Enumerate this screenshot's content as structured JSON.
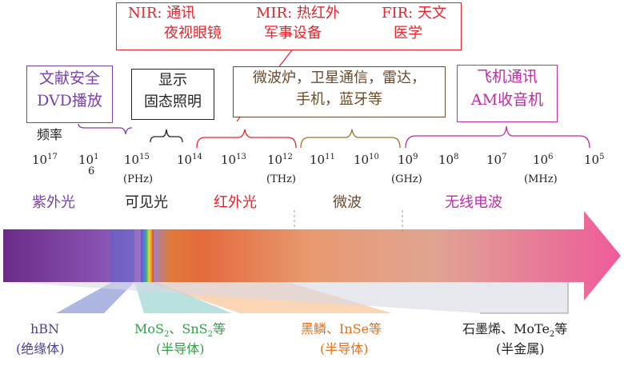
{
  "nir_box": {
    "nir_title": "NIR: 通讯",
    "nir_sub": "夜视眼镜",
    "mir_title": "MIR: 热红外",
    "mir_sub": "军事设备",
    "fir_title": "FIR: 天文",
    "fir_sub": "医学"
  },
  "app_boxes": {
    "uv_line1": "文献安全",
    "uv_line2": "DVD播放",
    "vis_line1": "显示",
    "vis_line2": "固态照明",
    "mw_line1": "微波炉，卫星通信，雷达，",
    "mw_line2": "手机，蓝牙等",
    "radio_line1": "飞机通讯",
    "radio_line2": "AM收音机"
  },
  "freq_axis": {
    "label": "频率",
    "ticks": [
      {
        "base": "10",
        "exp": "17"
      },
      {
        "base": "10",
        "exp": "1",
        "note": "6"
      },
      {
        "base": "10",
        "exp": "15"
      },
      {
        "base": "10",
        "exp": "14"
      },
      {
        "base": "10",
        "exp": "13"
      },
      {
        "base": "10",
        "exp": "12"
      },
      {
        "base": "10",
        "exp": "11"
      },
      {
        "base": "10",
        "exp": "10"
      },
      {
        "base": "10",
        "exp": "9"
      },
      {
        "base": "10",
        "exp": "8"
      },
      {
        "base": "10",
        "exp": "7"
      },
      {
        "base": "10",
        "exp": "6"
      },
      {
        "base": "10",
        "exp": "5"
      }
    ],
    "unit_phz": "(PHz)",
    "unit_thz": "(THz)",
    "unit_ghz": "(GHz)",
    "unit_mhz": "(MHz)"
  },
  "bands": {
    "uv": "紫外光",
    "visible": "可见光",
    "ir": "红外光",
    "microwave": "微波",
    "radio": "无线电波"
  },
  "materials": {
    "hbn_name": "hBN",
    "hbn_type": "(绝缘体)",
    "mos2_prefix": "MoS",
    "mos2_sub": "2",
    "sep1": "、",
    "sns2_prefix": "SnS",
    "sns2_sub": "2",
    "mos2_suffix": "等",
    "mos2_type": "(半导体)",
    "bp_name": "黑鳞、InSe等",
    "bp_type": "(半导体)",
    "graphene_prefix": "石墨烯、MoTe",
    "graphene_sub": "2",
    "graphene_suffix": "等",
    "graphene_type": "(半金属)"
  },
  "colors": {
    "uv": "#7a3fb0",
    "ir_red": "#e8232a",
    "microwave_brown": "#6b4a2a",
    "radio_magenta": "#c02aa5",
    "semiconductor_green": "#2ea043",
    "semiconductor_orange": "#e2701d",
    "arrow_pink": "#ee5b9a"
  }
}
